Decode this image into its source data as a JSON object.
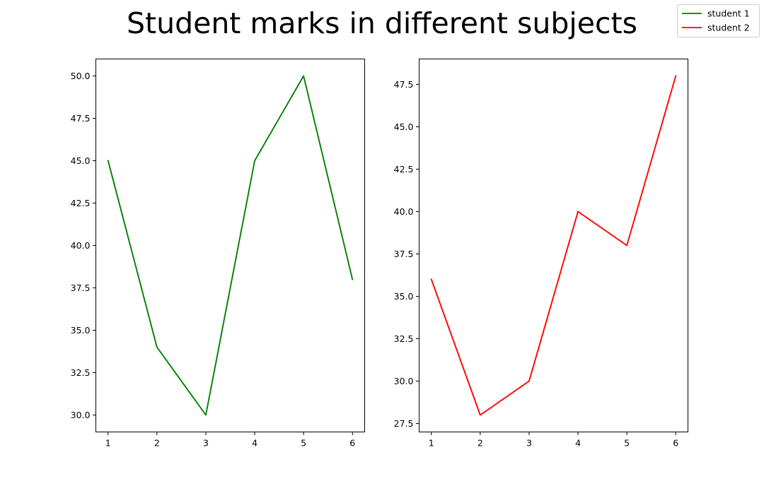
{
  "figure": {
    "title": "Student marks in different subjects"
  },
  "legend": {
    "placement": "top-right",
    "entries": [
      {
        "label": "student 1",
        "color": "#008000"
      },
      {
        "label": "student 2",
        "color": "#ff0000"
      }
    ]
  },
  "chart_data": [
    {
      "type": "line",
      "title": "",
      "xlabel": "",
      "ylabel": "",
      "x": [
        1,
        2,
        3,
        4,
        5,
        6
      ],
      "series": [
        {
          "name": "student 1",
          "color": "#008000",
          "values": [
            45,
            34,
            30,
            45,
            50,
            38
          ]
        }
      ],
      "xlim": [
        0.75,
        6.25
      ],
      "ylim": [
        29.0,
        51.0
      ],
      "xticks": [
        1,
        2,
        3,
        4,
        5,
        6
      ],
      "yticks": [
        30.0,
        32.5,
        35.0,
        37.5,
        40.0,
        42.5,
        45.0,
        47.5,
        50.0
      ],
      "ytick_labels": [
        "30.0",
        "32.5",
        "35.0",
        "37.5",
        "40.0",
        "42.5",
        "45.0",
        "47.5",
        "50.0"
      ],
      "grid": false
    },
    {
      "type": "line",
      "title": "",
      "xlabel": "",
      "ylabel": "",
      "x": [
        1,
        2,
        3,
        4,
        5,
        6
      ],
      "series": [
        {
          "name": "student 2",
          "color": "#ff0000",
          "values": [
            36,
            28,
            30,
            40,
            38,
            48
          ]
        }
      ],
      "xlim": [
        0.75,
        6.25
      ],
      "ylim": [
        27.0,
        49.0
      ],
      "xticks": [
        1,
        2,
        3,
        4,
        5,
        6
      ],
      "yticks": [
        27.5,
        30.0,
        32.5,
        35.0,
        37.5,
        40.0,
        42.5,
        45.0,
        47.5
      ],
      "ytick_labels": [
        "27.5",
        "30.0",
        "32.5",
        "35.0",
        "37.5",
        "40.0",
        "42.5",
        "45.0",
        "47.5"
      ],
      "grid": false
    }
  ]
}
